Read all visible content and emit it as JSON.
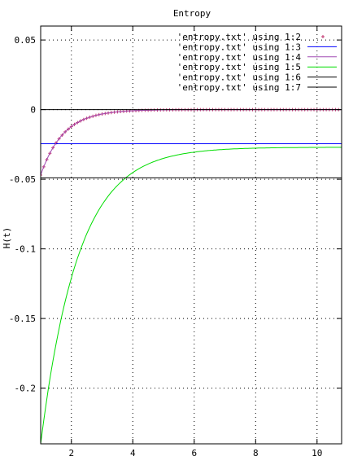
{
  "chart_data": {
    "type": "line",
    "title": "Entropy",
    "xlabel": "",
    "ylabel": "H(t)",
    "xlim": [
      1,
      10.8
    ],
    "ylim": [
      -0.24,
      0.06
    ],
    "xticks": [
      2,
      4,
      6,
      8,
      10
    ],
    "yticks": [
      0.05,
      0,
      -0.05,
      -0.1,
      -0.15,
      -0.2
    ],
    "ytick_labels": [
      "0.05",
      "0",
      "-0.05",
      "-0.1",
      "-0.15",
      "-0.2"
    ],
    "xtick_labels": [
      "2",
      "4",
      "6",
      "8",
      "10"
    ],
    "grid": true,
    "legend_position": "top-right",
    "series": [
      {
        "name": "'entropy.txt' using 1:2",
        "style": "points",
        "color": "#c0306b",
        "model": {
          "kind": "exp_decay",
          "a": -0.047,
          "k": 1.35,
          "x0": 1.0,
          "offset": 0
        },
        "x_start": 1.0,
        "x_end": 10.8,
        "x_step": 0.1
      },
      {
        "name": "'entropy.txt' using 1:3",
        "style": "line",
        "color": "#0000ff",
        "constant": -0.0245,
        "x_start": 1.0,
        "x_end": 10.8
      },
      {
        "name": "'entropy.txt' using 1:4",
        "style": "line",
        "color": "#a04bb4",
        "model": {
          "kind": "exp_decay",
          "a": -0.047,
          "k": 1.35,
          "x0": 1.0,
          "offset": 0
        },
        "x_start": 1.0,
        "x_end": 10.8,
        "x_step": 0.05
      },
      {
        "name": "'entropy.txt' using 1:5",
        "style": "line",
        "color": "#00dd00",
        "model": {
          "kind": "exp_decay",
          "a": -0.213,
          "k": 0.82,
          "x0": 1.0,
          "offset": -0.027
        },
        "x_start": 1.0,
        "x_end": 10.8,
        "x_step": 0.05
      },
      {
        "name": "'entropy.txt' using 1:6",
        "style": "line",
        "color": "#000000",
        "constant": 0.0,
        "x_start": 1.0,
        "x_end": 10.8
      },
      {
        "name": "'entropy.txt' using 1:7",
        "style": "line",
        "color": "#000000",
        "constant": -0.049,
        "x_start": 1.0,
        "x_end": 10.8
      }
    ]
  }
}
